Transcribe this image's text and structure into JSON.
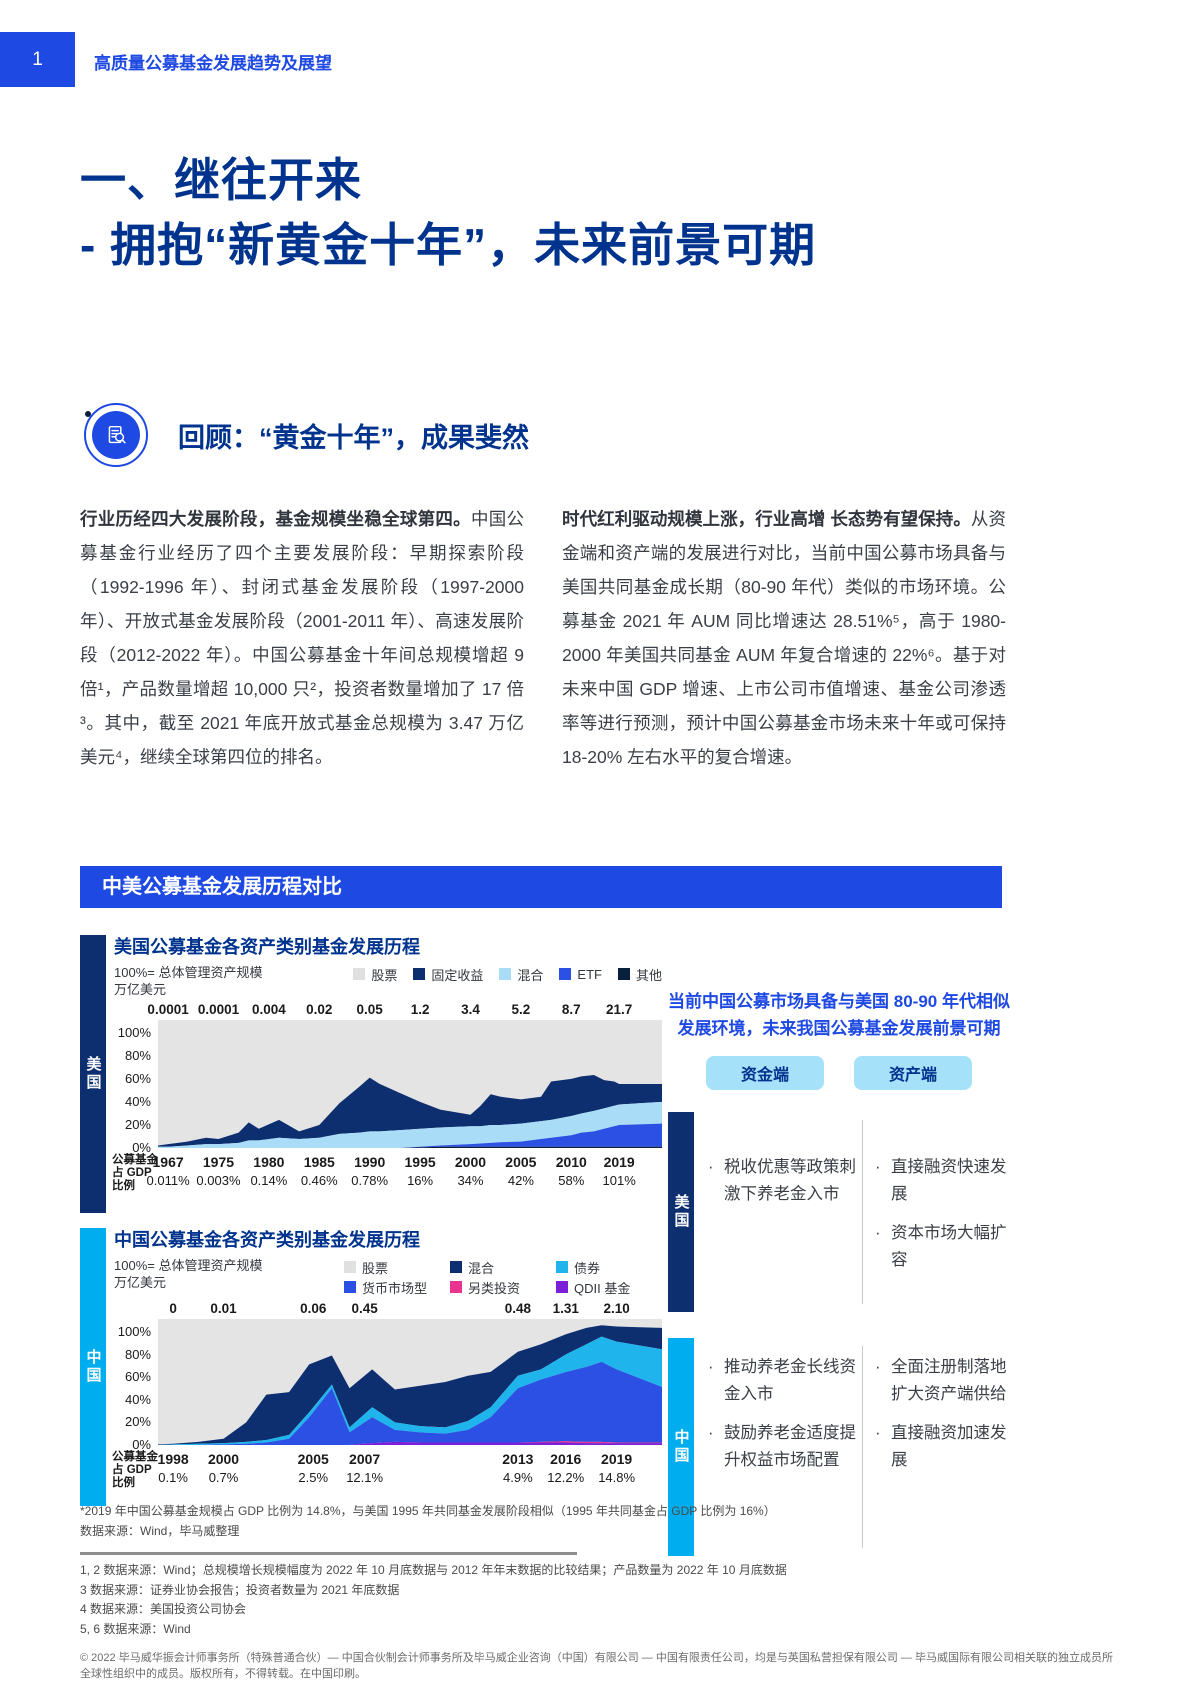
{
  "page": {
    "page_number": "1",
    "header": "高质量公募基金发展趋势及展望",
    "title_line1": "一、继往开来",
    "title_line2": "- 拥抱“新黄金十年”，未来前景可期"
  },
  "section": {
    "icon": "document-magnifier-icon",
    "title": "回顾：“黄金十年”，成果斐然"
  },
  "columns": {
    "left_bold": "行业历经四大发展阶段，基金规模坐稳全球第四。",
    "left_rest": "中国公募基金行业经历了四个主要发展阶段：早期探索阶段（1992-1996 年）、封闭式基金发展阶段（1997-2000 年）、开放式基金发展阶段（2001-2011 年）、高速发展阶段（2012-2022 年）。中国公募基金十年间总规模增超 9 倍¹，产品数量增超 10,000 只²，投资者数量增加了 17 倍³。其中，截至 2021 年底开放式基金总规模为 3.47 万亿美元⁴，继续全球第四位的排名。",
    "right_bold": "时代红利驱动规模上涨，行业高增 长态势有望保持。",
    "right_rest": "从资金端和资产端的发展进行对比，当前中国公募市场具备与美国共同基金成长期（80-90 年代）类似的市场环境。公募基金 2021 年 AUM 同比增速达 28.51%⁵，高于 1980-2000 年美国共同基金 AUM 年复合增速的 22%⁶。基于对未来中国 GDP 增速、上市公司市值增速、基金公司渗透率等进行预测，预计中国公募基金市场未来十年或可保持 18-20% 左右水平的复合增速。"
  },
  "banner": "中美公募基金发展历程对比",
  "chart_data": [
    {
      "type": "area",
      "region_label": "美国",
      "region_color": "#0D2E6F",
      "title": "美国公募基金各资产类别基金发展历程",
      "subtitle_line1": "100%= 总体管理资产规模",
      "subtitle_line2": "万亿美元",
      "legend_rows": [
        [
          {
            "label": "股票",
            "color": "#E0E0E0"
          },
          {
            "label": "固定收益",
            "color": "#0D2E6F"
          },
          {
            "label": "混合",
            "color": "#A9DCF6"
          },
          {
            "label": "ETF",
            "color": "#2B50E3"
          },
          {
            "label": "其他",
            "color": "#0A1F3D"
          }
        ]
      ],
      "background_color": "#E4E4E4",
      "y_ticks": [
        "100%",
        "80%",
        "60%",
        "40%",
        "20%",
        "0%"
      ],
      "x_tick_years": [
        "1967",
        "1975",
        "1980",
        "1985",
        "1990",
        "1995",
        "2000",
        "2005",
        "2010",
        "2019"
      ],
      "x_tick_fractions": [
        2,
        12,
        22,
        32,
        42,
        52,
        62,
        72,
        82,
        91.5
      ],
      "top_values": [
        "0.0001",
        "0.0001",
        "0.004",
        "0.02",
        "0.05",
        "1.2",
        "3.4",
        "5.2",
        "8.7",
        "21.7"
      ],
      "gdp_row_label": [
        "公募基金",
        "占 GDP",
        "比例"
      ],
      "gdp_values": [
        "0.011%",
        "0.003%",
        "0.14%",
        "0.46%",
        "0.78%",
        "16%",
        "34%",
        "42%",
        "58%",
        "101%"
      ],
      "shape": {
        "x": [
          0,
          2,
          5.8,
          9.5,
          12,
          16,
          18,
          20,
          24,
          28,
          32,
          36,
          40,
          42,
          44,
          48,
          52,
          56,
          62,
          64,
          66,
          68,
          72,
          76,
          78,
          82,
          84,
          86.5,
          88.5,
          90.5,
          91.5,
          100
        ],
        "bands": [
          {
            "name": "固定收益",
            "color": "#0D2E6F",
            "upper": [
              2,
              3,
              5,
              8,
              7,
              12,
              20,
              15,
              22,
              13,
              18,
              35,
              48,
              55,
              50,
              43,
              36,
              30,
              26,
              33,
              42,
              40,
              38,
              40,
              52,
              54,
              56,
              57,
              53,
              52,
              50,
              50
            ],
            "lower": [
              1,
              1,
              2,
              3,
              3,
              4,
              6,
              6,
              8,
              7,
              8,
              11,
              12,
              13,
              13,
              14,
              15,
              16,
              17,
              17,
              18,
              18,
              19,
              21,
              22,
              25,
              27,
              29,
              31,
              33,
              34,
              36
            ]
          },
          {
            "name": "混合",
            "color": "#A9DCF6",
            "upper": [
              1,
              1,
              2,
              3,
              3,
              4,
              6,
              6,
              8,
              7,
              8,
              11,
              12,
              13,
              13,
              14,
              15,
              16,
              17,
              17,
              18,
              18,
              19,
              21,
              22,
              25,
              27,
              29,
              31,
              33,
              34,
              36
            ],
            "lower": [
              0,
              0,
              0,
              0,
              0,
              0,
              0,
              0,
              0,
              0,
              0,
              0,
              0,
              0,
              0,
              0,
              1,
              2,
              3,
              3.5,
              4,
              4.5,
              5,
              7,
              8,
              10,
              12,
              13,
              15,
              17,
              18,
              19
            ]
          },
          {
            "name": "ETF",
            "color": "#2B50E3",
            "upper": [
              0,
              0,
              0,
              0,
              0,
              0,
              0,
              0,
              0,
              0,
              0,
              0,
              0,
              0,
              0,
              0,
              1,
              2,
              3,
              3.5,
              4,
              4.5,
              5,
              7,
              8,
              10,
              12,
              13,
              15,
              17,
              18,
              19
            ],
            "lower": [
              0,
              0,
              0,
              0,
              0,
              0,
              0,
              0,
              0,
              0,
              0,
              0,
              0,
              0,
              0,
              0,
              0.5,
              1,
              1,
              1,
              1,
              1,
              1,
              1,
              1,
              1,
              1,
              1,
              1,
              1,
              1,
              1
            ]
          },
          {
            "name": "其他",
            "color": "#0A1F3D",
            "upper": [
              0,
              0,
              0,
              0,
              0,
              0,
              0,
              0,
              0,
              0,
              0,
              0,
              0,
              0,
              0,
              0,
              0.5,
              1,
              1,
              1,
              1,
              1,
              1,
              1,
              1,
              1,
              1,
              1,
              1,
              1,
              1,
              1
            ],
            "lower": null
          }
        ]
      }
    },
    {
      "type": "area",
      "region_label": "中国",
      "region_color": "#00AEEF",
      "title": "中国公募基金各资产类别基金发展历程",
      "subtitle_line1": "100%= 总体管理资产规模",
      "subtitle_line2": "万亿美元",
      "legend_rows": [
        [
          {
            "label": "股票",
            "color": "#E0E0E0"
          },
          {
            "label": "混合",
            "color": "#0D2E6F"
          },
          {
            "label": "债券",
            "color": "#1FB4EC"
          }
        ],
        [
          {
            "label": "货币市场型",
            "color": "#2B50E3"
          },
          {
            "label": "另类投资",
            "color": "#E8348E"
          },
          {
            "label": "QDII 基金",
            "color": "#7B1FD8"
          }
        ]
      ],
      "background_color": "#E4E4E4",
      "y_ticks": [
        "100%",
        "80%",
        "60%",
        "40%",
        "20%",
        "0%"
      ],
      "x_tick_years": [
        "1998",
        "2000",
        "2005",
        "2007",
        "2013",
        "2016",
        "2019"
      ],
      "x_tick_fractions": [
        3,
        13,
        30.8,
        41,
        71.4,
        80.9,
        91
      ],
      "top_values": [
        "0",
        "0.01",
        "0.06",
        "0.45",
        "0.48",
        "1.31",
        "2.10"
      ],
      "gdp_row_label": [
        "公募基金",
        "占 GDP",
        "比例"
      ],
      "gdp_values": [
        "0.1%",
        "0.7%",
        "2.5%",
        "12.1%",
        "4.9%",
        "12.2%",
        "14.8%"
      ],
      "shape": {
        "x": [
          0,
          3,
          8,
          13,
          17.5,
          21.5,
          26,
          30,
          34.5,
          38,
          42.5,
          47,
          52,
          57,
          61.5,
          66,
          71.4,
          76,
          81,
          85,
          88,
          91,
          100
        ],
        "bands": [
          {
            "name": "混合",
            "color": "#0D2E6F",
            "upper": [
              0.5,
              1,
              2.5,
              5,
              18,
              40,
              42,
              64,
              71,
              45,
              60,
              44,
              47,
              50,
              55,
              58,
              74,
              80,
              88,
              93,
              95,
              94,
              93
            ],
            "lower": [
              0,
              0.5,
              1,
              1.5,
              2.5,
              4,
              8,
              26,
              48,
              14,
              30,
              18,
              15,
              14,
              19,
              30,
              55,
              60,
              72,
              80,
              86,
              82,
              76
            ]
          },
          {
            "name": "债券",
            "color": "#1FB4EC",
            "upper": [
              0,
              0.5,
              1,
              1.5,
              2.5,
              4,
              8,
              26,
              48,
              14,
              30,
              18,
              15,
              14,
              19,
              30,
              55,
              60,
              72,
              80,
              86,
              82,
              76
            ],
            "lower": [
              0,
              0,
              0,
              0.5,
              1,
              2,
              5,
              22,
              45,
              10,
              22,
              12,
              10,
              9,
              12,
              22,
              45,
              52,
              58,
              62,
              66,
              60,
              46
            ]
          },
          {
            "name": "货币市场型",
            "color": "#2B50E3",
            "upper": [
              0,
              0,
              0,
              0.5,
              1,
              2,
              5,
              22,
              45,
              10,
              22,
              12,
              10,
              9,
              12,
              22,
              45,
              52,
              58,
              62,
              66,
              60,
              46
            ],
            "lower": [
              0,
              0,
              0,
              0,
              0,
              0,
              0,
              0,
              0,
              0,
              1.5,
              2.5,
              2,
              2,
              2,
              2,
              2,
              2.5,
              3,
              2.5,
              2.5,
              2,
              2
            ]
          },
          {
            "name": "另类投资",
            "color": "#E8348E",
            "upper": [
              0,
              0,
              0,
              0,
              0,
              0,
              0,
              0,
              0,
              0,
              1.5,
              2.5,
              2,
              2,
              2,
              2,
              2,
              2.5,
              3,
              2.5,
              2.5,
              2,
              2
            ],
            "lower": [
              0,
              0,
              0,
              0,
              0,
              0,
              0,
              0,
              0,
              0,
              1.5,
              2.5,
              2,
              2,
              2,
              2,
              2,
              2,
              2,
              1.5,
              1.5,
              1.5,
              1.5
            ]
          },
          {
            "name": "QDII 基金",
            "color": "#7B1FD8",
            "upper": [
              0,
              0,
              0,
              0,
              0,
              0,
              0,
              0,
              0,
              0,
              1.5,
              2.5,
              2,
              2,
              2,
              2,
              2,
              2,
              2,
              1.5,
              1.5,
              1.5,
              1.5
            ],
            "lower": null
          }
        ]
      }
    }
  ],
  "right_panel": {
    "title": "当前中国公募市场具备与美国 80-90 年代相似发展环境，未来我国公募基金发展前景可期",
    "badges": [
      "资金端",
      "资产端"
    ],
    "rows": [
      {
        "region": "美国",
        "bar_color": "#0D2E6F",
        "funding": [
          "税收优惠等政策刺激下养老金入市"
        ],
        "asset": [
          "直接融资快速发展",
          "资本市场大幅扩容"
        ]
      },
      {
        "region": "中国",
        "bar_color": "#00AEEF",
        "funding": [
          "推动养老金长线资金入市",
          "鼓励养老金适度提升权益市场配置"
        ],
        "asset": [
          "全面注册制落地扩大资产端供给",
          "直接融资加速发展"
        ]
      }
    ]
  },
  "footnotes": {
    "star_note": "*2019 年中国公募基金规模占 GDP 比例为 14.8%，与美国 1995 年共同基金发展阶段相似（1995 年共同基金占 GDP 比例为 16%）",
    "source_note": "数据来源：Wind，毕马威整理",
    "notes": [
      "1, 2 数据来源：Wind；总规模增长规模幅度为 2022 年 10 月底数据与 2012 年年末数据的比较结果；产品数量为 2022 年 10 月底数据",
      "3 数据来源：证券业协会报告；投资者数量为 2021 年底数据",
      "4 数据来源：美国投资公司协会",
      "5, 6 数据来源：Wind"
    ],
    "copyright": "© 2022 毕马威华振会计师事务所（特殊普通合伙）— 中国合伙制会计师事务所及毕马威企业咨询（中国）有限公司 — 中国有限责任公司，均是与英国私营担保有限公司 — 毕马威国际有限公司相关联的独立成员所全球性组织中的成员。版权所有，不得转载。在中国印刷。"
  }
}
